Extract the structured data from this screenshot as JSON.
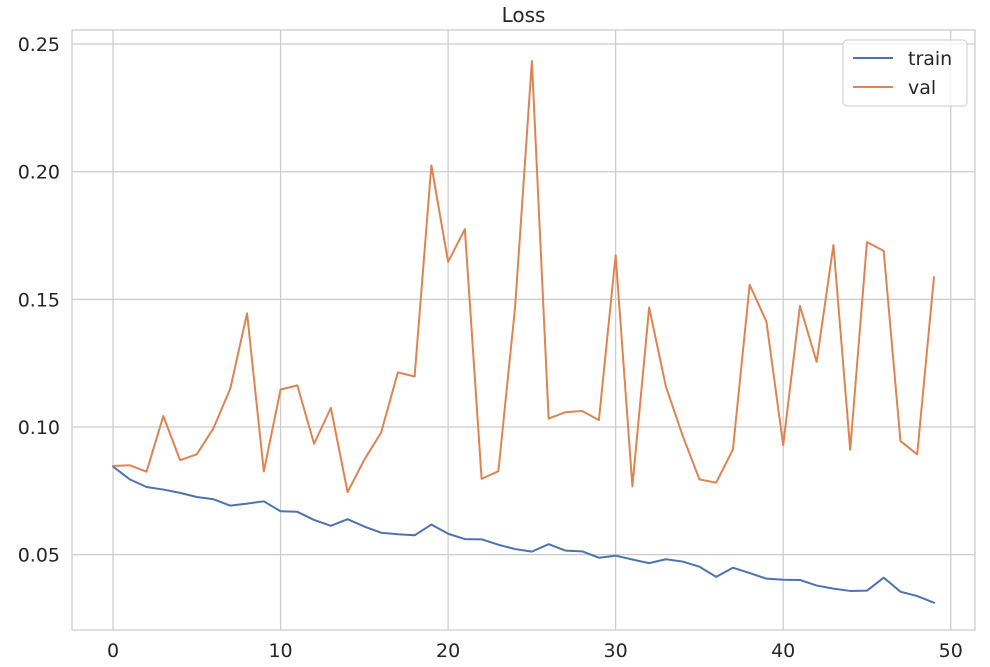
{
  "chart_data": {
    "type": "line",
    "title": "Loss",
    "xlabel": "",
    "ylabel": "",
    "xlim": [
      -2.45,
      51.45
    ],
    "ylim": [
      0.0205,
      0.2555
    ],
    "xticks": [
      0,
      10,
      20,
      30,
      40,
      50
    ],
    "xtick_labels": [
      "0",
      "10",
      "20",
      "30",
      "40",
      "50"
    ],
    "yticks": [
      0.05,
      0.1,
      0.15,
      0.2,
      0.25
    ],
    "ytick_labels": [
      "0.05",
      "0.10",
      "0.15",
      "0.20",
      "0.25"
    ],
    "grid": true,
    "legend_position": "top-right",
    "x": [
      0,
      1,
      2,
      3,
      4,
      5,
      6,
      7,
      8,
      9,
      10,
      11,
      12,
      13,
      14,
      15,
      16,
      17,
      18,
      19,
      20,
      21,
      22,
      23,
      24,
      25,
      26,
      27,
      28,
      29,
      30,
      31,
      32,
      33,
      34,
      35,
      36,
      37,
      38,
      39,
      40,
      41,
      42,
      43,
      44,
      45,
      46,
      47,
      48,
      49
    ],
    "series": [
      {
        "name": "train",
        "color": "#4c72b0",
        "values": [
          0.0845,
          0.0795,
          0.0765,
          0.0755,
          0.0742,
          0.0726,
          0.0717,
          0.0692,
          0.07,
          0.0709,
          0.067,
          0.0668,
          0.0636,
          0.0613,
          0.0639,
          0.061,
          0.0586,
          0.058,
          0.0576,
          0.0618,
          0.0582,
          0.0561,
          0.056,
          0.0539,
          0.0522,
          0.0512,
          0.0541,
          0.0516,
          0.0513,
          0.0488,
          0.0496,
          0.0481,
          0.0467,
          0.0482,
          0.0473,
          0.0453,
          0.0413,
          0.0449,
          0.0428,
          0.0406,
          0.0402,
          0.0401,
          0.0379,
          0.0367,
          0.0358,
          0.0359,
          0.041,
          0.0355,
          0.0338,
          0.0312
        ]
      },
      {
        "name": "val",
        "color": "#dd8452",
        "values": [
          0.0848,
          0.085,
          0.0825,
          0.1043,
          0.087,
          0.0893,
          0.0996,
          0.1151,
          0.1445,
          0.0826,
          0.1147,
          0.1163,
          0.0934,
          0.1075,
          0.0745,
          0.0872,
          0.0978,
          0.1214,
          0.1198,
          0.2025,
          0.1647,
          0.1775,
          0.0797,
          0.0827,
          0.147,
          0.2433,
          0.1033,
          0.1058,
          0.1063,
          0.1027,
          0.1673,
          0.0768,
          0.1468,
          0.1158,
          0.0966,
          0.0795,
          0.0782,
          0.0912,
          0.1557,
          0.1413,
          0.0929,
          0.1474,
          0.1255,
          0.1713,
          0.0911,
          0.1724,
          0.169,
          0.0945,
          0.0893,
          0.1587
        ]
      }
    ]
  }
}
